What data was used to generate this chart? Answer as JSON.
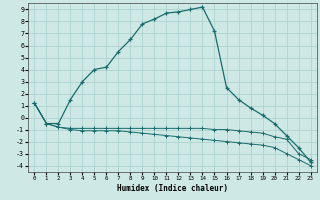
{
  "xlabel": "Humidex (Indice chaleur)",
  "bg_color": "#cde8e5",
  "grid_color": "#b0d4d0",
  "line_color": "#1a6b6b",
  "xlim": [
    -0.5,
    23.5
  ],
  "ylim": [
    -4.5,
    9.5
  ],
  "xticks": [
    0,
    1,
    2,
    3,
    4,
    5,
    6,
    7,
    8,
    9,
    10,
    11,
    12,
    13,
    14,
    15,
    16,
    17,
    18,
    19,
    20,
    21,
    22,
    23
  ],
  "yticks": [
    -4,
    -3,
    -2,
    -1,
    0,
    1,
    2,
    3,
    4,
    5,
    6,
    7,
    8,
    9
  ],
  "line_main_x": [
    0,
    1,
    2,
    3,
    4,
    5,
    6,
    7,
    8,
    9,
    10,
    11,
    12,
    13,
    14,
    15,
    16,
    17,
    18,
    19,
    20,
    21,
    22,
    23
  ],
  "line_main_y": [
    1.2,
    -0.5,
    -0.5,
    1.5,
    3.0,
    4.0,
    4.2,
    5.5,
    6.5,
    7.8,
    8.2,
    8.7,
    8.8,
    9.0,
    9.2,
    7.2,
    2.5,
    1.5,
    0.8,
    0.2,
    -0.5,
    -1.5,
    -2.5,
    -3.7
  ],
  "line_upper_x": [
    0,
    1,
    2,
    3,
    4,
    5,
    6,
    7,
    8,
    9,
    10,
    11,
    12,
    13,
    14,
    15,
    16,
    17,
    18,
    19,
    20,
    21,
    22,
    23
  ],
  "line_upper_y": [
    1.2,
    -0.5,
    -0.8,
    -0.9,
    -0.9,
    -0.9,
    -0.9,
    -0.9,
    -0.9,
    -0.9,
    -0.9,
    -0.9,
    -0.9,
    -0.9,
    -0.9,
    -1.0,
    -1.0,
    -1.1,
    -1.2,
    -1.3,
    -1.6,
    -1.8,
    -3.0,
    -3.5
  ],
  "line_lower_x": [
    0,
    1,
    2,
    3,
    4,
    5,
    6,
    7,
    8,
    9,
    10,
    11,
    12,
    13,
    14,
    15,
    16,
    17,
    18,
    19,
    20,
    21,
    22,
    23
  ],
  "line_lower_y": [
    1.2,
    -0.5,
    -0.8,
    -1.0,
    -1.1,
    -1.1,
    -1.1,
    -1.1,
    -1.2,
    -1.3,
    -1.4,
    -1.5,
    -1.6,
    -1.7,
    -1.8,
    -1.9,
    -2.0,
    -2.1,
    -2.2,
    -2.3,
    -2.5,
    -3.0,
    -3.5,
    -4.0
  ]
}
